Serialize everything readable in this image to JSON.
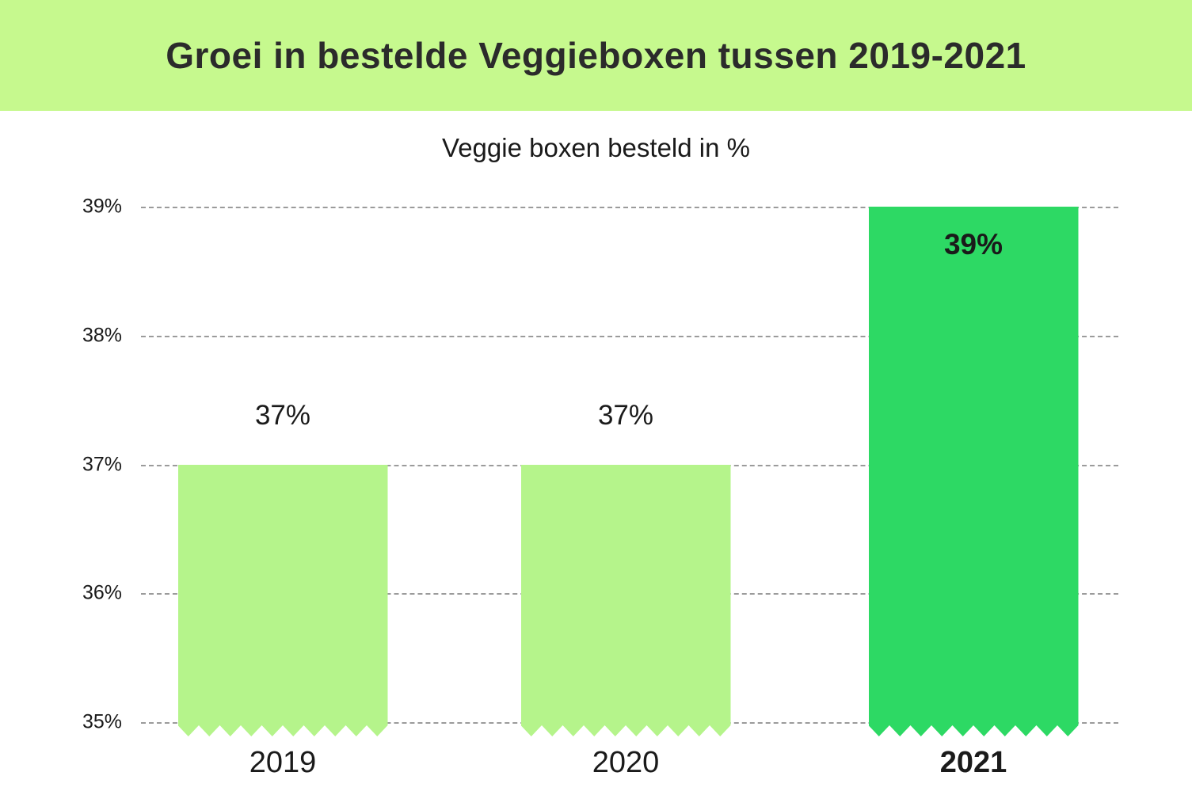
{
  "header": {
    "title": "Groei in bestelde Veggieboxen tussen 2019-2021"
  },
  "chart_data": {
    "type": "bar",
    "title": "Veggie boxen besteld in %",
    "categories": [
      "2019",
      "2020",
      "2021"
    ],
    "values": [
      37,
      37,
      39
    ],
    "value_labels": [
      "37%",
      "37%",
      "39%"
    ],
    "yticks": [
      "39%",
      "38%",
      "37%",
      "36%",
      "35%"
    ],
    "ylim": [
      35,
      39
    ],
    "grid": "horizontal-dashed",
    "legend": "none",
    "highlight_index": 2,
    "bar_bottom_style": "zigzag-torn-edge"
  },
  "colors": {
    "banner_bg": "#c6f98e",
    "bar_light": "#b5f48b",
    "bar_highlight": "#2dd964",
    "gridline": "#9b9b9b",
    "title_text": "#2b2b2b",
    "label_text": "#1a1a1a"
  }
}
